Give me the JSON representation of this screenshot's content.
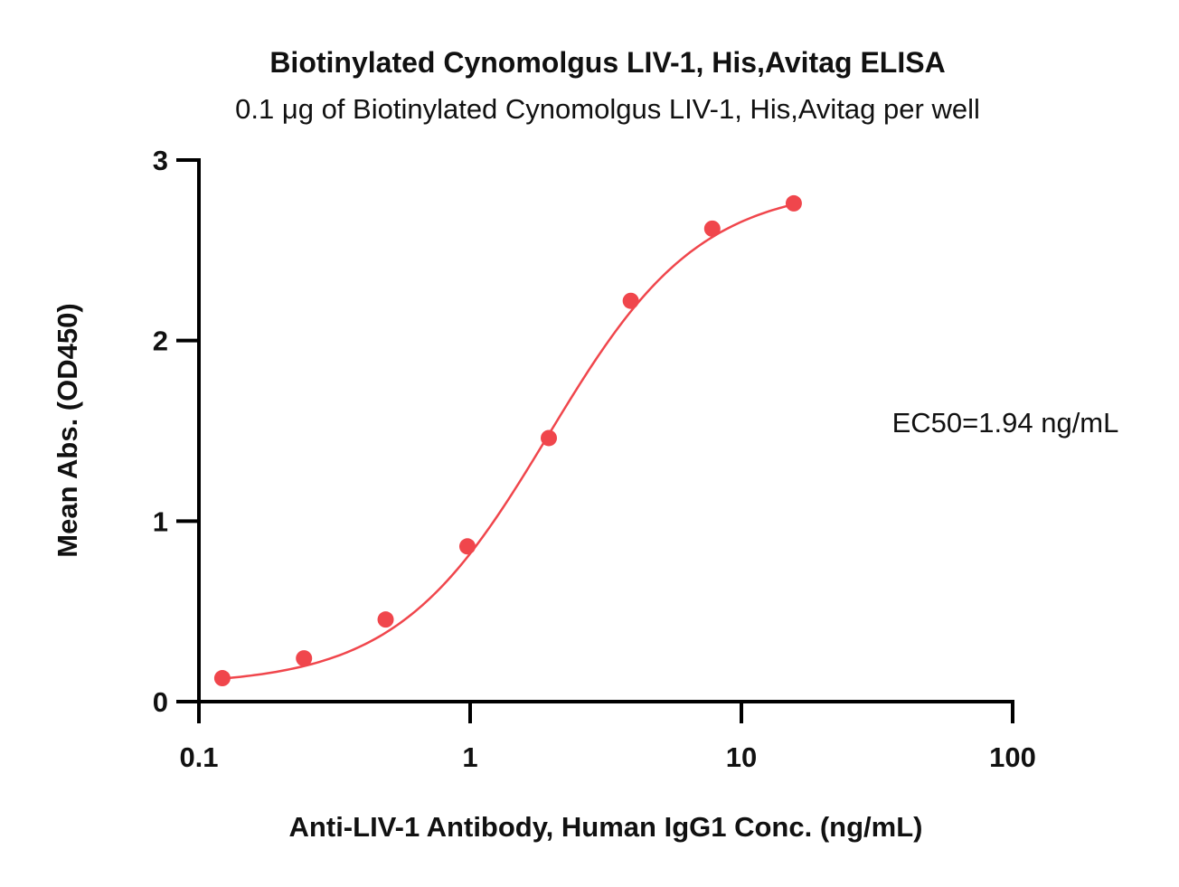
{
  "chart_data": {
    "type": "scatter",
    "title": "Biotinylated Cynomolgus LIV-1, His,Avitag ELISA",
    "subtitle": "0.1 μg of Biotinylated Cynomolgus LIV-1, His,Avitag per well",
    "xlabel": "Anti-LIV-1 Antibody, Human IgG1 Conc. (ng/mL)",
    "ylabel": "Mean Abs. (OD450)",
    "x_scale": "log",
    "xlim": [
      0.1,
      100
    ],
    "ylim": [
      0,
      3
    ],
    "x_ticks": [
      {
        "value": 0.1,
        "label": "0.1"
      },
      {
        "value": 1,
        "label": "1"
      },
      {
        "value": 10,
        "label": "10"
      },
      {
        "value": 100,
        "label": "100"
      }
    ],
    "y_ticks": [
      {
        "value": 0,
        "label": "0"
      },
      {
        "value": 1,
        "label": "1"
      },
      {
        "value": 2,
        "label": "2"
      },
      {
        "value": 3,
        "label": "3"
      }
    ],
    "grid": false,
    "legend": "none",
    "color": "#f0464c",
    "points": [
      {
        "x": 0.122,
        "y": 0.13
      },
      {
        "x": 0.244,
        "y": 0.24
      },
      {
        "x": 0.488,
        "y": 0.455
      },
      {
        "x": 0.977,
        "y": 0.86
      },
      {
        "x": 1.95,
        "y": 1.46
      },
      {
        "x": 3.91,
        "y": 2.22
      },
      {
        "x": 7.81,
        "y": 2.62
      },
      {
        "x": 15.6,
        "y": 2.76
      }
    ],
    "fit": {
      "model": "4PL",
      "bottom": 0.09,
      "top": 2.86,
      "ec50": 1.94,
      "hill": 1.55,
      "x_range": [
        0.122,
        15.6
      ]
    },
    "annotation": "EC50=1.94 ng/mL"
  }
}
